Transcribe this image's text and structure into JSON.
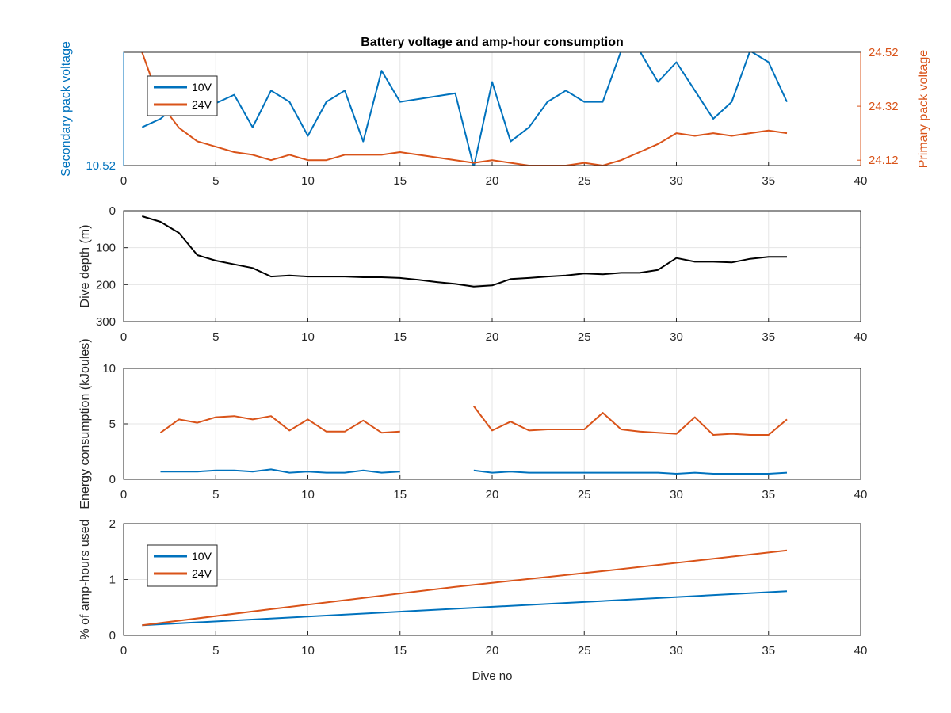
{
  "figure": {
    "title": "Battery voltage and amp-hour consumption",
    "xlabel": "Dive no"
  },
  "colors": {
    "blue": "#0072bd",
    "orange": "#d95319",
    "black": "#000000",
    "grid": "#e5e5e5",
    "axis": "#262626"
  },
  "chart_data": [
    {
      "type": "line",
      "title": "Battery voltage and amp-hour consumption",
      "xlabel": "",
      "ylabel_left": "Secondary pack voltage",
      "ylabel_right": "Primary pack voltage",
      "xlim": [
        0,
        40
      ],
      "xticks": [
        0,
        5,
        10,
        15,
        20,
        25,
        30,
        35,
        40
      ],
      "ylim_left": [
        10.52,
        10.56
      ],
      "yticks_left": [
        "10.52"
      ],
      "ylim_right": [
        24.1,
        24.52
      ],
      "yticks_right": [
        "24.12",
        "24.32",
        "24.52"
      ],
      "grid": true,
      "legend": {
        "position": "top-left",
        "entries": [
          "10V",
          "24V"
        ]
      },
      "series": [
        {
          "name": "10V",
          "axis": "left",
          "color": "blue",
          "x": [
            1,
            2,
            3,
            4,
            5,
            6,
            7,
            8,
            9,
            10,
            11,
            12,
            13,
            14,
            15,
            16,
            17,
            18,
            19,
            20,
            21,
            22,
            23,
            24,
            25,
            26,
            27,
            28,
            29,
            30,
            31,
            32,
            33,
            34,
            35,
            36
          ],
          "y": [
            10.5335,
            10.5365,
            10.542,
            10.544,
            10.542,
            10.545,
            10.5335,
            10.5465,
            10.5425,
            10.5305,
            10.5425,
            10.5465,
            10.5285,
            10.5535,
            10.5425,
            10.5435,
            10.5445,
            10.5455,
            10.5195,
            10.5495,
            10.5285,
            10.5335,
            10.5425,
            10.5465,
            10.5425,
            10.5425,
            10.5605,
            10.5605,
            10.5495,
            10.5565,
            10.5465,
            10.5365,
            10.5425,
            10.5605,
            10.5565,
            10.5425
          ]
        },
        {
          "name": "24V",
          "axis": "right",
          "color": "orange",
          "x": [
            1,
            2,
            3,
            4,
            5,
            6,
            7,
            8,
            9,
            10,
            11,
            12,
            13,
            14,
            15,
            16,
            17,
            18,
            19,
            20,
            21,
            22,
            23,
            24,
            25,
            26,
            27,
            28,
            29,
            30,
            31,
            32,
            33,
            34,
            35,
            36
          ],
          "y": [
            24.52,
            24.33,
            24.24,
            24.19,
            24.17,
            24.15,
            24.14,
            24.12,
            24.14,
            24.12,
            24.12,
            24.14,
            24.14,
            24.14,
            24.15,
            24.14,
            24.13,
            24.12,
            24.11,
            24.12,
            24.11,
            24.1,
            24.1,
            24.1,
            24.11,
            24.1,
            24.12,
            24.15,
            24.18,
            24.22,
            24.21,
            24.22,
            24.21,
            24.22,
            24.23,
            24.22
          ]
        }
      ]
    },
    {
      "type": "line",
      "ylabel": "Dive depth (m)",
      "xlim": [
        0,
        40
      ],
      "xticks": [
        0,
        5,
        10,
        15,
        20,
        25,
        30,
        35,
        40
      ],
      "ylim": [
        300,
        0
      ],
      "yticks": [
        0,
        100,
        200,
        300
      ],
      "grid": true,
      "series": [
        {
          "color": "black",
          "x": [
            1,
            2,
            3,
            4,
            5,
            6,
            7,
            8,
            9,
            10,
            11,
            12,
            13,
            14,
            15,
            16,
            17,
            18,
            19,
            20,
            21,
            22,
            23,
            24,
            25,
            26,
            27,
            28,
            29,
            30,
            31,
            32,
            33,
            34,
            35,
            36
          ],
          "y": [
            15,
            30,
            60,
            120,
            135,
            145,
            155,
            178,
            175,
            178,
            178,
            178,
            180,
            180,
            182,
            187,
            193,
            198,
            205,
            202,
            185,
            182,
            178,
            175,
            170,
            172,
            168,
            168,
            160,
            128,
            138,
            138,
            140,
            130,
            125,
            125
          ]
        }
      ]
    },
    {
      "type": "line",
      "ylabel": "Energy consumption (kJoules)",
      "xlim": [
        0,
        40
      ],
      "xticks": [
        0,
        5,
        10,
        15,
        20,
        25,
        30,
        35,
        40
      ],
      "ylim": [
        0,
        10
      ],
      "yticks": [
        0,
        5,
        10
      ],
      "grid": true,
      "series": [
        {
          "color": "orange",
          "segments": [
            {
              "x": [
                2,
                3,
                4,
                5,
                6,
                7,
                8,
                9,
                10,
                11,
                12,
                13,
                14,
                15
              ],
              "y": [
                4.2,
                5.4,
                5.1,
                5.6,
                5.7,
                5.4,
                5.7,
                4.4,
                5.4,
                4.3,
                4.3,
                5.3,
                4.2,
                4.3
              ]
            },
            {
              "x": [
                19,
                20,
                21,
                22,
                23,
                24,
                25,
                26,
                27,
                28,
                29,
                30,
                31,
                32,
                33,
                34,
                35,
                36
              ],
              "y": [
                6.6,
                4.4,
                5.2,
                4.4,
                4.5,
                4.5,
                4.5,
                6.0,
                4.5,
                4.3,
                4.2,
                4.1,
                5.6,
                4.0,
                4.1,
                4.0,
                4.0,
                5.4
              ]
            }
          ]
        },
        {
          "color": "blue",
          "segments": [
            {
              "x": [
                2,
                3,
                4,
                5,
                6,
                7,
                8,
                9,
                10,
                11,
                12,
                13,
                14,
                15
              ],
              "y": [
                0.7,
                0.7,
                0.7,
                0.8,
                0.8,
                0.7,
                0.9,
                0.6,
                0.7,
                0.6,
                0.6,
                0.8,
                0.6,
                0.7
              ]
            },
            {
              "x": [
                19,
                20,
                21,
                22,
                23,
                24,
                25,
                26,
                27,
                28,
                29,
                30,
                31,
                32,
                33,
                34,
                35,
                36
              ],
              "y": [
                0.8,
                0.6,
                0.7,
                0.6,
                0.6,
                0.6,
                0.6,
                0.6,
                0.6,
                0.6,
                0.6,
                0.5,
                0.6,
                0.5,
                0.5,
                0.5,
                0.5,
                0.6
              ]
            }
          ]
        }
      ]
    },
    {
      "type": "line",
      "ylabel": "% of amp-hours used",
      "xlabel": "Dive no",
      "xlim": [
        0,
        40
      ],
      "xticks": [
        0,
        5,
        10,
        15,
        20,
        25,
        30,
        35,
        40
      ],
      "ylim": [
        0,
        2
      ],
      "yticks": [
        0,
        1,
        2
      ],
      "grid": true,
      "legend": {
        "position": "top-left",
        "entries": [
          "10V",
          "24V"
        ]
      },
      "series": [
        {
          "name": "10V",
          "color": "blue",
          "x": [
            1,
            36
          ],
          "y": [
            0.18,
            0.79
          ]
        },
        {
          "name": "24V",
          "color": "orange",
          "x": [
            1,
            8,
            18,
            26,
            36
          ],
          "y": [
            0.18,
            0.47,
            0.87,
            1.15,
            1.52
          ]
        }
      ]
    }
  ]
}
